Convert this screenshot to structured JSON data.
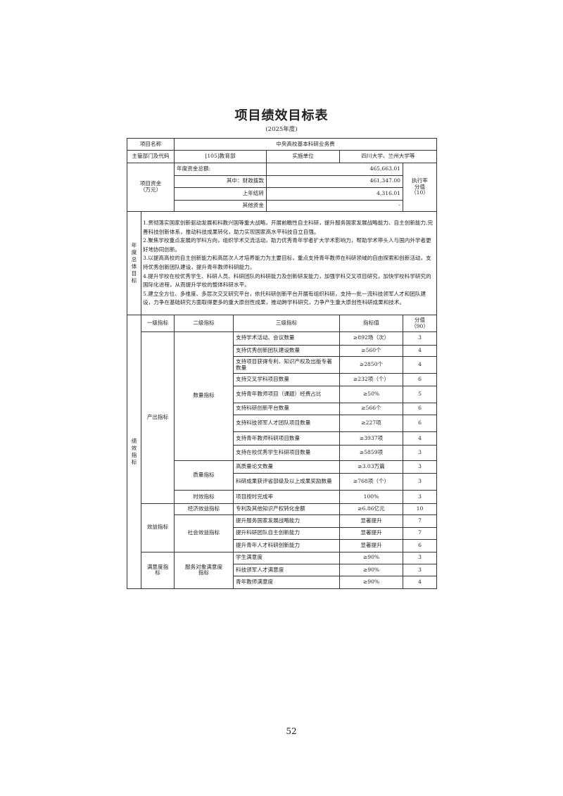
{
  "title": "项目绩效目标表",
  "subtitle": "(2025年度)",
  "header": {
    "project_name_label": "项目名称",
    "project_name": "中央高校基本科研业务费",
    "dept_label": "主管部门及代码",
    "dept": "[105]教育部",
    "unit_label": "实施单位",
    "unit": "四川大学、兰州大学等"
  },
  "funds": {
    "label": "项目资金\n（万元）",
    "label_line1": "项目资金",
    "label_line2": "（万元）",
    "total_label": "年度资金总额:",
    "total": "465,663.01",
    "fiscal_label": "其中：财政拨款",
    "fiscal": "461,347.00",
    "carryover_label": "上年结转",
    "carryover": "4,316.01",
    "other_label": "其他资金",
    "other": "-",
    "exec_line1": "执行率",
    "exec_line2": "分值",
    "exec_line3": "（10）"
  },
  "goals": {
    "label": "年度总体目标",
    "items": [
      "1.贯彻落实国家创新驱动发展和科教兴国等重大战略，开展前瞻性自主科研，提升服务国家发展战略能力、自主创新能力,完善科技创新体系，推动科技成果转化，助力实现国家高水平科技自立自强。",
      "2.聚焦学校重点发展的学科方向，组织学术交流活动，助力优秀青年学者扩大学术影响力，帮助学术带头人与国内外学者更好地协同创新。",
      "3.以提高高校的自主创新能力和高层次人才培养能力为主要目标，重点支持青年教师在科研领域的自由探索和创新活动，支持优秀创新团队建设，提升青年教师科研能力。",
      "4.提升学校在校优秀学生、科研人员、科研团队的科研能力及创新研发能力，加强学科交叉项目研究，加快学校科学研究的国际化进程，从而提升学校的整体科研水平。",
      "5.建立全方位、多维度、多层次交叉研究平台，依托科研创新平台开展有组织科研，支持一批一流科技领军人才和团队建设，力争在基础研究方面取得更多的重大原创性成果，推动跨学科研究，力争产生重大原创性科研成果和技术。"
    ]
  },
  "indicators": {
    "label": "绩效指标",
    "headers": [
      "一级指标",
      "二级指标",
      "三级指标",
      "指标值",
      "分值",
      "（90）"
    ],
    "level1": [
      "产出指标",
      "效益指标",
      "满意度指标"
    ],
    "level2": [
      "数量指标",
      "质量指标",
      "时效指标",
      "经济效益指标",
      "社会效益指标",
      "服务对象满意度指标"
    ],
    "rows": [
      {
        "name": "支持学术活动、会议数量",
        "value": "≥892场（次）",
        "score": "3"
      },
      {
        "name": "支持优秀创新团队建设数量",
        "value": "≥560个",
        "score": "4"
      },
      {
        "name": "支持项目获得专利、知识产权及出版专著数量",
        "value": "≥2850个",
        "score": "4"
      },
      {
        "name": "支持交叉学科项目数量",
        "value": "≥232项（个）",
        "score": "6"
      },
      {
        "name": "支持青年教师项目（课题）经费占比",
        "value": "≥50%",
        "score": "5"
      },
      {
        "name": "支持科研创新平台数量",
        "value": "≥566个",
        "score": "6"
      },
      {
        "name": "支持科技领军人才团队项目数量",
        "value": "≥227项",
        "score": "6"
      },
      {
        "name": "支持青年教师科研项目数量",
        "value": "≥3937项",
        "score": "4"
      },
      {
        "name": "支持在校优秀学生科研项目数量",
        "value": "≥5859项",
        "score": "3"
      },
      {
        "name": "高质量论文数量",
        "value": "≥3.03万篇",
        "score": "3"
      },
      {
        "name": "科研成果获评省部级及以上成果奖励数量",
        "value": "≥768项（个）",
        "score": "3"
      },
      {
        "name": "项目按时完成率",
        "value": "100%",
        "score": "3"
      },
      {
        "name": "专利及其他知识产权转化金额",
        "value": "≥6.86亿元",
        "score": "10"
      },
      {
        "name": "提升服务国家发展战略能力",
        "value": "显著提升",
        "score": "7"
      },
      {
        "name": "提升科研团队自主创新能力",
        "value": "显著提升",
        "score": "7"
      },
      {
        "name": "提升青年人才科研创新能力",
        "value": "显著提升",
        "score": "6"
      },
      {
        "name": "学生满意度",
        "value": "≥90%",
        "score": "3"
      },
      {
        "name": "科技领军人才满意度",
        "value": "≥90%",
        "score": "3"
      },
      {
        "name": "青年教师满意度",
        "value": "≥90%",
        "score": "4"
      }
    ]
  },
  "page_number": "52"
}
